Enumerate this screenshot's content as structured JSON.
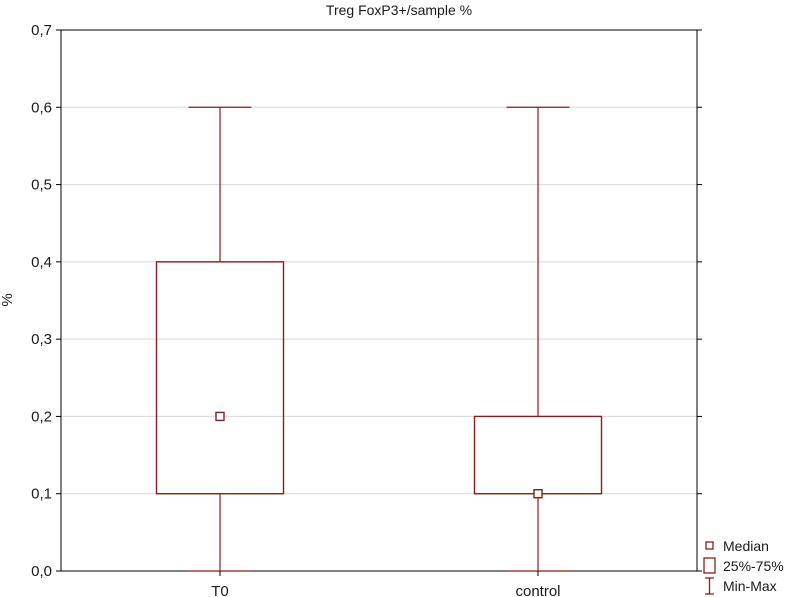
{
  "chart_data": {
    "type": "box",
    "title": "Treg FoxP3+/sample %",
    "xlabel": "",
    "ylabel": "%",
    "ylim": [
      0.0,
      0.7
    ],
    "yticks": [
      "0,0",
      "0,1",
      "0,2",
      "0,3",
      "0,4",
      "0,5",
      "0,6",
      "0,7"
    ],
    "grid": "horizontal",
    "categories": [
      "T0",
      "control"
    ],
    "boxes": [
      {
        "category": "T0",
        "min": 0.0,
        "q1": 0.1,
        "median": 0.2,
        "q3": 0.4,
        "max": 0.6
      },
      {
        "category": "control",
        "min": 0.0,
        "q1": 0.1,
        "median": 0.1,
        "q3": 0.2,
        "max": 0.6
      }
    ],
    "legend": {
      "position": "bottom-right",
      "items": [
        {
          "label": "Median",
          "symbol": "median-square"
        },
        {
          "label": "25%-75%",
          "symbol": "box"
        },
        {
          "label": "Min-Max",
          "symbol": "whisker"
        }
      ]
    },
    "colors": {
      "series": "#8b1c1c",
      "axis": "#000000",
      "grid": "#d9d9d9"
    }
  }
}
